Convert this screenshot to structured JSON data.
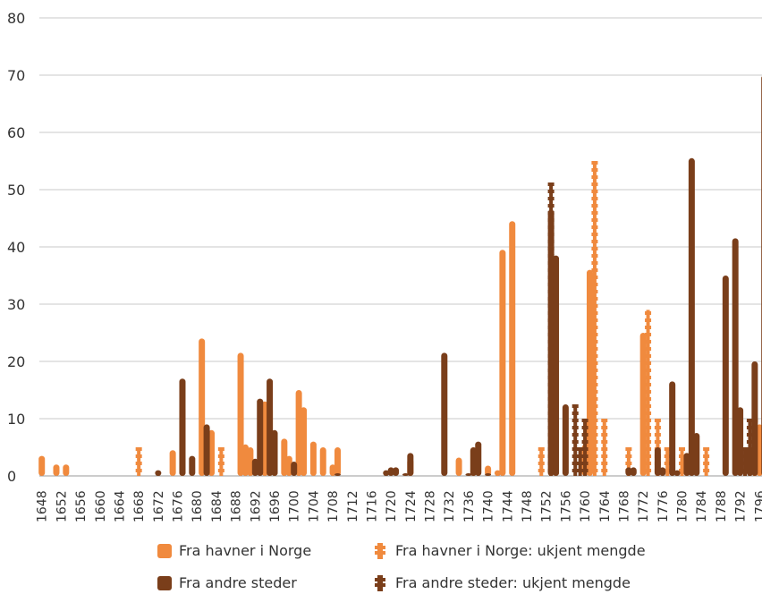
{
  "chart_data": {
    "type": "bar",
    "ylim": [
      0,
      80
    ],
    "yticks": [
      0,
      10,
      20,
      30,
      40,
      50,
      60,
      70,
      80
    ],
    "xticks": [
      1648,
      1652,
      1656,
      1660,
      1664,
      1668,
      1672,
      1676,
      1680,
      1684,
      1688,
      1692,
      1696,
      1700,
      1704,
      1708,
      1712,
      1716,
      1720,
      1724,
      1728,
      1732,
      1736,
      1740,
      1744,
      1748,
      1752,
      1756,
      1760,
      1764,
      1768,
      1772,
      1776,
      1780,
      1784,
      1788,
      1792,
      1796
    ],
    "xlim": [
      1647.5,
      1796.5
    ],
    "grid": true,
    "legend": "bottom",
    "colors": {
      "norway": "#f08a3e",
      "other": "#7a3e1a"
    },
    "series": [
      {
        "name": "Fra havner i Norge",
        "style": "solid",
        "points": [
          {
            "x": 1648,
            "y": 3.5
          },
          {
            "x": 1651,
            "y": 2
          },
          {
            "x": 1653,
            "y": 2
          },
          {
            "x": 1675,
            "y": 4.5
          },
          {
            "x": 1677,
            "y": 12
          },
          {
            "x": 1681,
            "y": 24
          },
          {
            "x": 1683,
            "y": 8
          },
          {
            "x": 1689,
            "y": 21.5
          },
          {
            "x": 1690,
            "y": 5.5
          },
          {
            "x": 1691,
            "y": 5
          },
          {
            "x": 1694,
            "y": 13
          },
          {
            "x": 1695,
            "y": 12
          },
          {
            "x": 1696,
            "y": 7
          },
          {
            "x": 1698,
            "y": 6.5
          },
          {
            "x": 1699,
            "y": 3.5
          },
          {
            "x": 1701,
            "y": 15
          },
          {
            "x": 1702,
            "y": 12
          },
          {
            "x": 1704,
            "y": 6
          },
          {
            "x": 1706,
            "y": 5
          },
          {
            "x": 1708,
            "y": 2
          },
          {
            "x": 1709,
            "y": 5
          },
          {
            "x": 1724,
            "y": 3
          },
          {
            "x": 1734,
            "y": 3.2
          },
          {
            "x": 1737,
            "y": 5
          },
          {
            "x": 1740,
            "y": 1.8
          },
          {
            "x": 1742,
            "y": 1
          },
          {
            "x": 1743,
            "y": 39.5
          },
          {
            "x": 1745,
            "y": 44.5
          },
          {
            "x": 1754,
            "y": 38
          },
          {
            "x": 1760,
            "y": 5.5
          },
          {
            "x": 1761,
            "y": 36
          },
          {
            "x": 1772,
            "y": 25
          },
          {
            "x": 1781,
            "y": 4
          },
          {
            "x": 1796,
            "y": 9
          }
        ]
      },
      {
        "name": "Fra havner i Norge: ukjent mengde",
        "style": "dashed",
        "points": [
          {
            "x": 1668,
            "y": 5
          },
          {
            "x": 1685,
            "y": 5
          },
          {
            "x": 1751,
            "y": 5
          },
          {
            "x": 1762,
            "y": 55
          },
          {
            "x": 1764,
            "y": 10
          },
          {
            "x": 1769,
            "y": 5
          },
          {
            "x": 1773,
            "y": 29
          },
          {
            "x": 1775,
            "y": 10
          },
          {
            "x": 1777,
            "y": 5
          },
          {
            "x": 1780,
            "y": 5
          },
          {
            "x": 1785,
            "y": 5
          },
          {
            "x": 1795,
            "y": 10
          }
        ]
      },
      {
        "name": "Fra andre steder",
        "style": "solid",
        "points": [
          {
            "x": 1672,
            "y": 1
          },
          {
            "x": 1677,
            "y": 17
          },
          {
            "x": 1679,
            "y": 3.5
          },
          {
            "x": 1682,
            "y": 9
          },
          {
            "x": 1692,
            "y": 3
          },
          {
            "x": 1693,
            "y": 13.5
          },
          {
            "x": 1695,
            "y": 17
          },
          {
            "x": 1696,
            "y": 8
          },
          {
            "x": 1700,
            "y": 2.5
          },
          {
            "x": 1709,
            "y": 0.3
          },
          {
            "x": 1719,
            "y": 1
          },
          {
            "x": 1720,
            "y": 1.5
          },
          {
            "x": 1721,
            "y": 1.5
          },
          {
            "x": 1723,
            "y": 0.3
          },
          {
            "x": 1724,
            "y": 4
          },
          {
            "x": 1731,
            "y": 21.5
          },
          {
            "x": 1736,
            "y": 0.3
          },
          {
            "x": 1737,
            "y": 5
          },
          {
            "x": 1738,
            "y": 6
          },
          {
            "x": 1740,
            "y": 0.3
          },
          {
            "x": 1753,
            "y": 46.5
          },
          {
            "x": 1754,
            "y": 38.5
          },
          {
            "x": 1756,
            "y": 12.5
          },
          {
            "x": 1769,
            "y": 1.5
          },
          {
            "x": 1770,
            "y": 1.5
          },
          {
            "x": 1775,
            "y": 5
          },
          {
            "x": 1776,
            "y": 1.5
          },
          {
            "x": 1778,
            "y": 16.5
          },
          {
            "x": 1779,
            "y": 1
          },
          {
            "x": 1781,
            "y": 4
          },
          {
            "x": 1782,
            "y": 55.5
          },
          {
            "x": 1783,
            "y": 7.5
          },
          {
            "x": 1789,
            "y": 35
          },
          {
            "x": 1791,
            "y": 41.5
          },
          {
            "x": 1792,
            "y": 12
          },
          {
            "x": 1794,
            "y": 5
          },
          {
            "x": 1795,
            "y": 20
          },
          {
            "x": 1797,
            "y": 70
          }
        ]
      },
      {
        "name": "Fra andre steder: ukjent mengde",
        "style": "dashed",
        "points": [
          {
            "x": 1753,
            "y": 51
          },
          {
            "x": 1758,
            "y": 12
          },
          {
            "x": 1759,
            "y": 5
          },
          {
            "x": 1760,
            "y": 10
          },
          {
            "x": 1793,
            "y": 5
          },
          {
            "x": 1794,
            "y": 10
          }
        ]
      }
    ]
  }
}
